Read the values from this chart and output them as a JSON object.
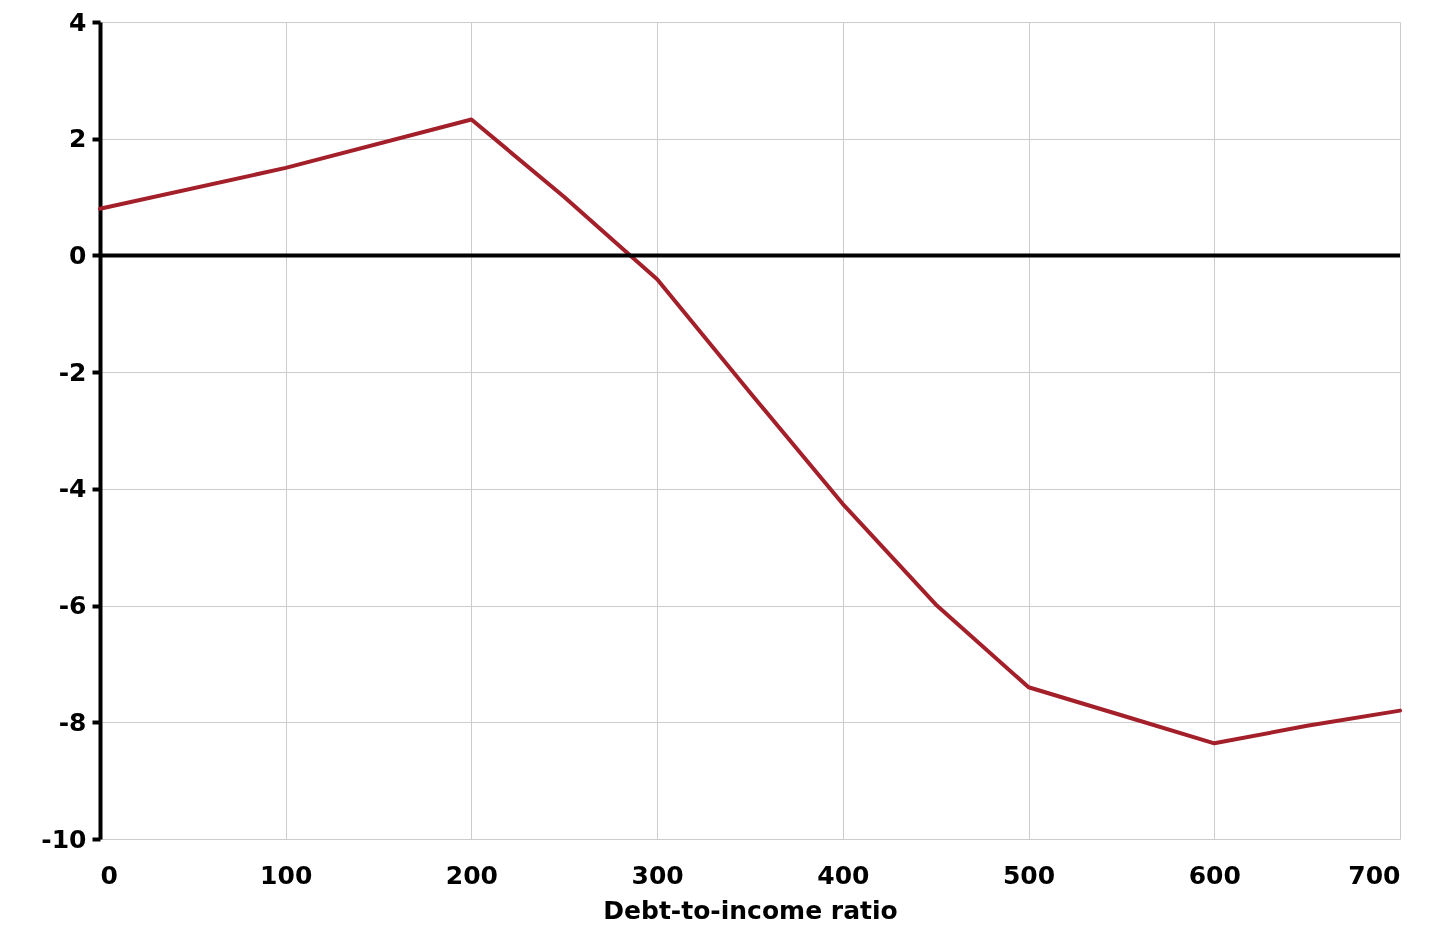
{
  "chart_data": {
    "type": "line",
    "xlabel": "Debt-to-income ratio",
    "x": [
      0,
      100,
      200,
      250,
      300,
      350,
      400,
      450,
      500,
      550,
      600,
      650,
      700
    ],
    "series": [
      {
        "color": "#a3202a",
        "values": [
          0.8,
          1.5,
          2.33,
          1.0,
          -0.41,
          -2.35,
          -4.26,
          -5.98,
          -7.4,
          -7.88,
          -8.36,
          -8.06,
          -7.8
        ]
      }
    ],
    "xlim": [
      0,
      700
    ],
    "xticks": [
      0,
      100,
      200,
      300,
      400,
      500,
      600,
      700
    ],
    "ylim": [
      -10,
      4
    ],
    "yticks": [
      -10,
      -8,
      -6,
      -4,
      -2,
      0,
      2,
      4
    ],
    "grid": true,
    "marker": "none",
    "line_style": "solid"
  }
}
